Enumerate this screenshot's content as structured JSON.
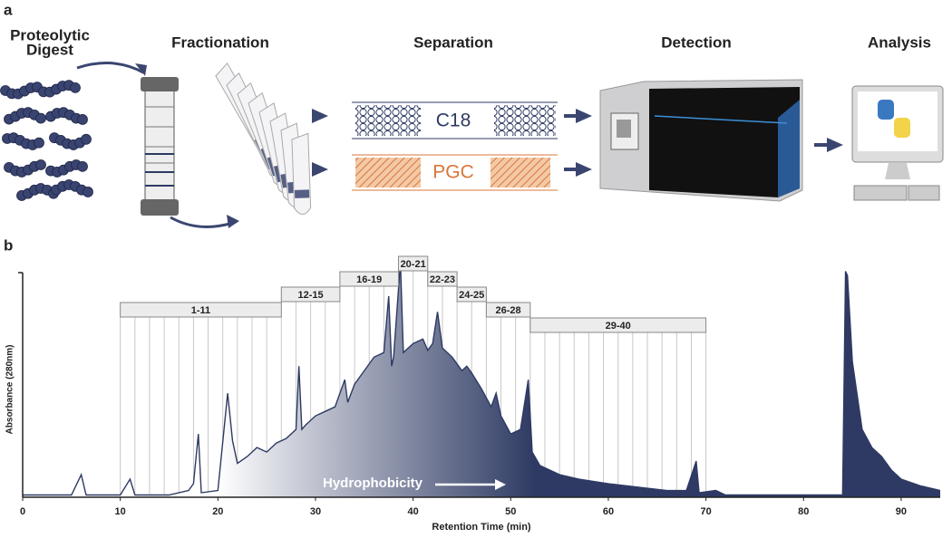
{
  "panel_labels": [
    "a",
    "b"
  ],
  "workflow": {
    "steps": [
      {
        "lines": [
          "Proteolytic",
          "Digest"
        ]
      },
      {
        "lines": [
          "Fractionation"
        ]
      },
      {
        "lines": [
          "Separation"
        ]
      },
      {
        "lines": [
          "Detection"
        ]
      },
      {
        "lines": [
          "Analysis"
        ]
      }
    ],
    "columns": [
      "C18",
      "PGC"
    ]
  },
  "chart_data": {
    "type": "area",
    "xlabel": "Retention Time (min)",
    "ylabel": "Absorbance (280nm)",
    "color": "#2e3a63",
    "annotation": "Hydrophobicity",
    "xlim": [
      0,
      94
    ],
    "xticks": [
      0,
      10,
      20,
      30,
      40,
      50,
      60,
      70,
      80,
      90
    ],
    "ylim": [
      0,
      105
    ],
    "x": [
      0,
      5,
      6,
      6.5,
      10,
      11,
      11.5,
      15,
      17,
      17.5,
      18,
      18.3,
      20,
      21,
      21.5,
      22,
      23,
      24,
      25,
      26,
      27,
      28,
      28.3,
      28.6,
      29,
      30,
      31,
      32,
      33,
      33.3,
      34,
      35,
      36,
      37,
      37.5,
      37.8,
      38,
      38.7,
      39,
      40,
      41,
      41.5,
      42,
      42.5,
      43,
      44,
      45,
      45.5,
      46,
      47,
      48,
      48.5,
      49,
      50,
      51,
      51.8,
      52.2,
      53,
      55,
      57,
      60,
      62,
      64,
      66,
      68,
      69,
      69.3,
      71,
      72,
      75,
      80,
      84,
      84.3,
      84.5,
      85,
      86,
      87,
      88,
      89,
      90,
      92,
      94
    ],
    "values": [
      1,
      1,
      10,
      1,
      1,
      8,
      1,
      1,
      3,
      6,
      28,
      2,
      3,
      46,
      25,
      15,
      18,
      22,
      20,
      24,
      26,
      30,
      58,
      30,
      32,
      36,
      38,
      40,
      52,
      42,
      50,
      56,
      62,
      64,
      89,
      58,
      62,
      104,
      64,
      68,
      70,
      65,
      68,
      82,
      66,
      62,
      56,
      58,
      55,
      48,
      40,
      46,
      36,
      28,
      30,
      52,
      20,
      14,
      10,
      8,
      6,
      5,
      4,
      3,
      3,
      16,
      2,
      3,
      1,
      1,
      1,
      1,
      100,
      98,
      60,
      30,
      22,
      18,
      12,
      8,
      5,
      3
    ],
    "fraction_edges": [
      10,
      11.5,
      13,
      14.5,
      16,
      17.5,
      19,
      20.5,
      22,
      23.5,
      25,
      26.5,
      28,
      29.5,
      31,
      32.5,
      34,
      35.5,
      37,
      38.5,
      40,
      41.5,
      43,
      44.5,
      46,
      47.5,
      49,
      50.5,
      52,
      53.5,
      55,
      56.5,
      58,
      59.5,
      61,
      62.5,
      64,
      65.5,
      67,
      68.5,
      70
    ],
    "fractions": [
      {
        "label": "1-11",
        "start": 10,
        "end": 26.5
      },
      {
        "label": "12-15",
        "start": 26.5,
        "end": 32.5
      },
      {
        "label": "16-19",
        "start": 32.5,
        "end": 38.5
      },
      {
        "label": "20-21",
        "start": 38.5,
        "end": 41.5
      },
      {
        "label": "22-23",
        "start": 41.5,
        "end": 44.5
      },
      {
        "label": "24-25",
        "start": 44.5,
        "end": 47.5
      },
      {
        "label": "26-28",
        "start": 47.5,
        "end": 52
      },
      {
        "label": "29-40",
        "start": 52,
        "end": 70
      }
    ]
  }
}
